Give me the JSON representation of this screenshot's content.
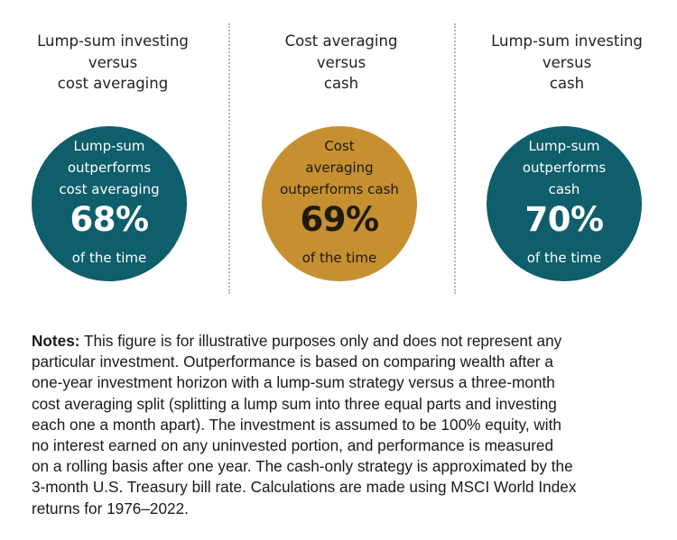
{
  "colors": {
    "teal": "#0e5e6b",
    "gold": "#c68f30",
    "circle_text_light": "#ffffff",
    "circle_text_dark": "#1f1a10",
    "divider": "#b7b7b7"
  },
  "panels": [
    {
      "title_lines": [
        "Lump-sum investing",
        "versus",
        "cost averaging"
      ],
      "circle_color": "teal",
      "desc_lines": [
        "Lump-sum",
        "outperforms",
        "cost averaging"
      ],
      "percent": "68%",
      "percent_value": 68,
      "suffix": "of the time"
    },
    {
      "title_lines": [
        "Cost averaging",
        "versus",
        "cash"
      ],
      "circle_color": "gold",
      "desc_lines": [
        "Cost",
        "averaging",
        "outperforms cash"
      ],
      "percent": "69%",
      "percent_value": 69,
      "suffix": "of the time"
    },
    {
      "title_lines": [
        "Lump-sum investing",
        "versus",
        "cash"
      ],
      "circle_color": "teal",
      "desc_lines": [
        "Lump-sum",
        "outperforms",
        "cash"
      ],
      "percent": "70%",
      "percent_value": 70,
      "suffix": "of the time"
    }
  ],
  "notes": {
    "label": "Notes:",
    "lines": [
      " This figure is for illustrative purposes only and does not represent any",
      "particular investment. Outperformance is based on comparing wealth after a",
      "one-year investment horizon with a lump-sum strategy versus a three-month",
      "cost averaging split (splitting a lump sum into three equal parts and investing",
      "each one a month apart). The investment is assumed to be 100% equity, with",
      "no interest earned on any uninvested portion, and performance is measured",
      "on a rolling basis after one year. The cash-only strategy is approximated by the",
      "3-month U.S. Treasury bill rate. Calculations are made using MSCI World Index",
      "returns for 1976–2022."
    ]
  }
}
